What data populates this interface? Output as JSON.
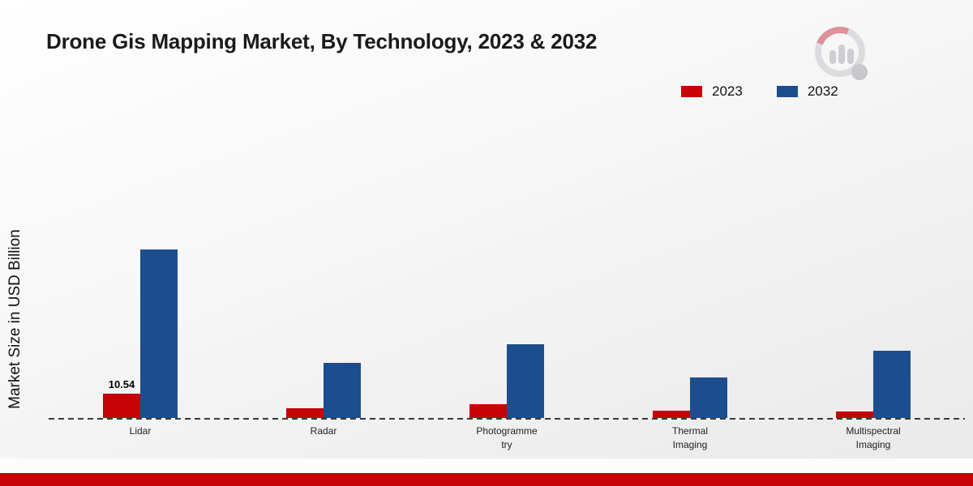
{
  "title": "Drone Gis Mapping Market, By Technology, 2023 & 2032",
  "y_axis_label": "Market Size in USD Billion",
  "legend": {
    "items": [
      {
        "label": "2023",
        "color": "#c60405"
      },
      {
        "label": "2032",
        "color": "#1c4e8f"
      }
    ]
  },
  "chart_data": {
    "type": "bar",
    "title": "Drone Gis Mapping Market, By Technology, 2023 & 2032",
    "ylabel": "Market Size in USD Billion",
    "xlabel": "",
    "categories": [
      "Lidar",
      "Radar",
      "Photogrammetry",
      "Thermal Imaging",
      "Multispectral Imaging"
    ],
    "categories_display": [
      "Lidar",
      "Radar",
      "Photogramme\ntry",
      "Thermal\nImaging",
      "Multispectral\nImaging"
    ],
    "series": [
      {
        "name": "2023",
        "color": "#c60405",
        "values": [
          10.54,
          4.2,
          6.0,
          3.1,
          2.8
        ]
      },
      {
        "name": "2032",
        "color": "#1c4e8f",
        "values": [
          72.5,
          23.5,
          31.5,
          17.5,
          29.0
        ]
      }
    ],
    "annotation": {
      "series_index": 0,
      "category_index": 0,
      "text": "10.54"
    },
    "ylim": [
      0,
      80
    ],
    "grid": false,
    "baseline": "dashed",
    "legend_position": "top-right"
  },
  "footer": {
    "accent_color": "#c60405"
  }
}
